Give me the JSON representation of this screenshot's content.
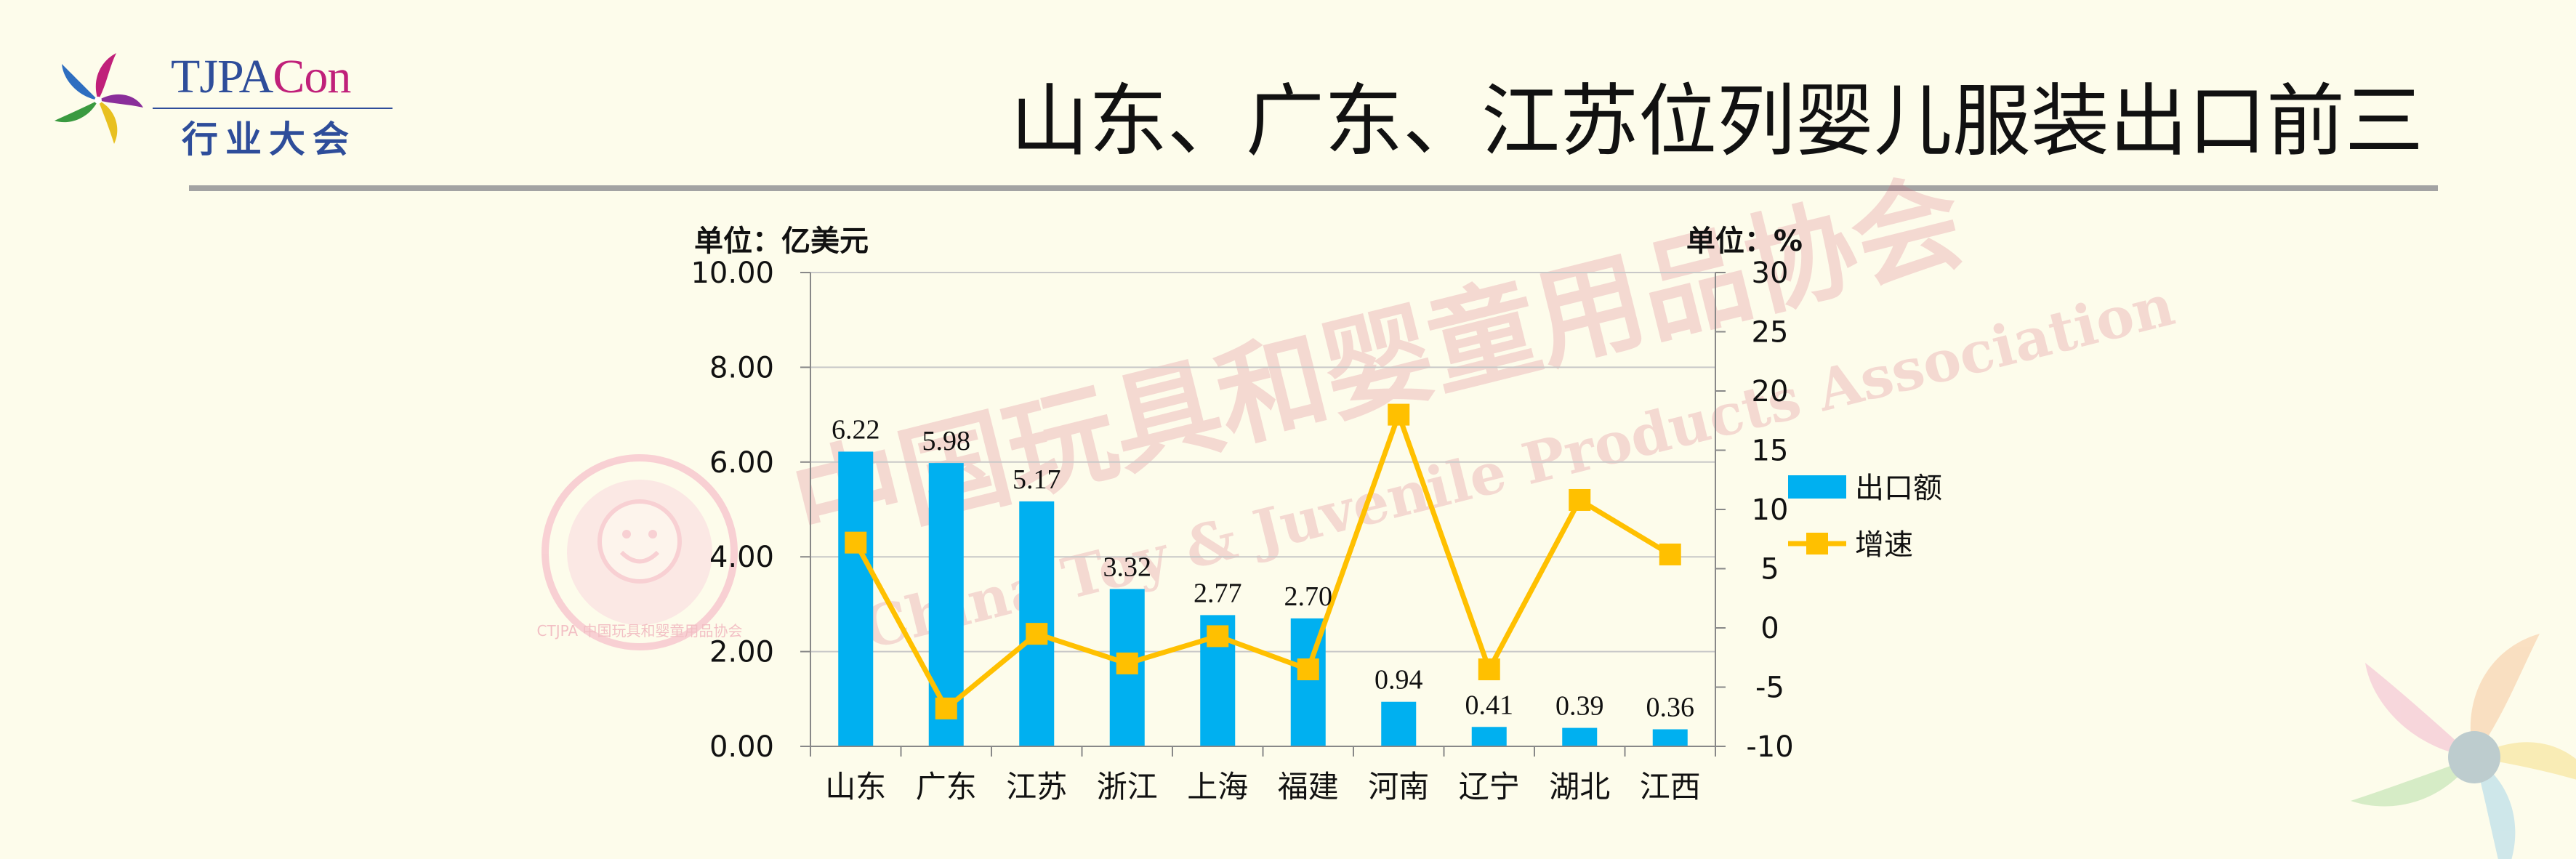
{
  "title": "山东、广东、江苏位列婴儿服装出口前三",
  "logo": {
    "text_top_a": "TJPA",
    "text_top_b": "Con",
    "text_bottom": "行业大会"
  },
  "watermark": {
    "text_cn": "中国玩具和婴童用品协会",
    "text_en": "China Toy & Juvenile Products Association",
    "seal_text": "CTJPA 中国玩具和婴童用品协会"
  },
  "colors": {
    "bar": "#00b0f0",
    "line": "#ffc000",
    "background": "#fdfceb"
  },
  "chart_data": {
    "type": "bar",
    "categories": [
      "山东",
      "广东",
      "江苏",
      "浙江",
      "上海",
      "福建",
      "河南",
      "辽宁",
      "湖北",
      "江西"
    ],
    "series": [
      {
        "name": "出口额",
        "type": "bar",
        "axis": "left",
        "values": [
          6.22,
          5.98,
          5.17,
          3.32,
          2.77,
          2.7,
          0.94,
          0.41,
          0.39,
          0.36
        ],
        "labels": [
          "6.22",
          "5.98",
          "5.17",
          "3.32",
          "2.77",
          "2.70",
          "0.94",
          "0.41",
          "0.39",
          "0.36"
        ]
      },
      {
        "name": "增速",
        "type": "line",
        "axis": "right",
        "values": [
          7.2,
          -6.8,
          -0.5,
          -3.0,
          -0.7,
          -3.5,
          18.0,
          -3.5,
          10.8,
          6.2
        ]
      }
    ],
    "y_left": {
      "label": "单位：亿美元",
      "ylim": [
        0,
        10
      ],
      "ticks": [
        "0.00",
        "2.00",
        "4.00",
        "6.00",
        "8.00",
        "10.00"
      ]
    },
    "y_right": {
      "label": "单位：%",
      "ylim": [
        -10,
        30
      ],
      "ticks": [
        "-10",
        "-5",
        "0",
        "5",
        "10",
        "15",
        "20",
        "25",
        "30"
      ]
    },
    "grid": true,
    "legend": "right"
  }
}
